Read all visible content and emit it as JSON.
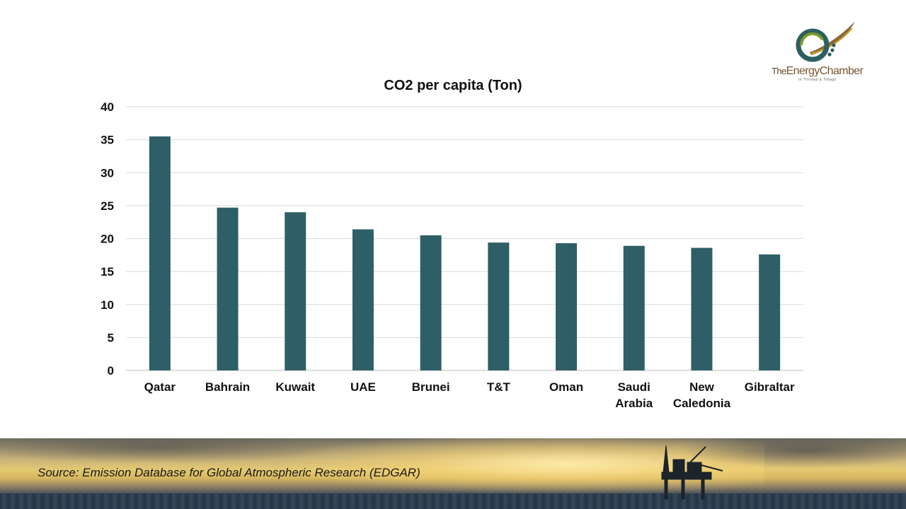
{
  "chart_data": {
    "type": "bar",
    "title": "CO2 per capita (Ton)",
    "categories": [
      [
        "Qatar"
      ],
      [
        "Bahrain"
      ],
      [
        "Kuwait"
      ],
      [
        "UAE"
      ],
      [
        "Brunei"
      ],
      [
        "T&T"
      ],
      [
        "Oman"
      ],
      [
        "Saudi",
        "Arabia"
      ],
      [
        "New",
        "Caledonia"
      ],
      [
        "Gibraltar"
      ]
    ],
    "values": [
      35.5,
      24.7,
      24.0,
      21.4,
      20.5,
      19.4,
      19.3,
      18.9,
      18.6,
      17.6
    ],
    "ylim": [
      0,
      40
    ],
    "yticks": [
      0,
      5,
      10,
      15,
      20,
      25,
      30,
      35,
      40
    ],
    "xlabel": "",
    "ylabel": "",
    "grid": true,
    "bar_color": "#2f5f66"
  },
  "logo": {
    "prefix": "The",
    "name_a": "Energy",
    "name_b": "Chamber",
    "subtitle": "of Trinidad & Tobago",
    "colors": {
      "teal": "#2d5f5f",
      "green": "#7a9a2a",
      "gold": "#c9a227",
      "brown": "#7a5530"
    }
  },
  "footer": {
    "source": "Source: Emission Database for Global Atmospheric Research (EDGAR)"
  }
}
